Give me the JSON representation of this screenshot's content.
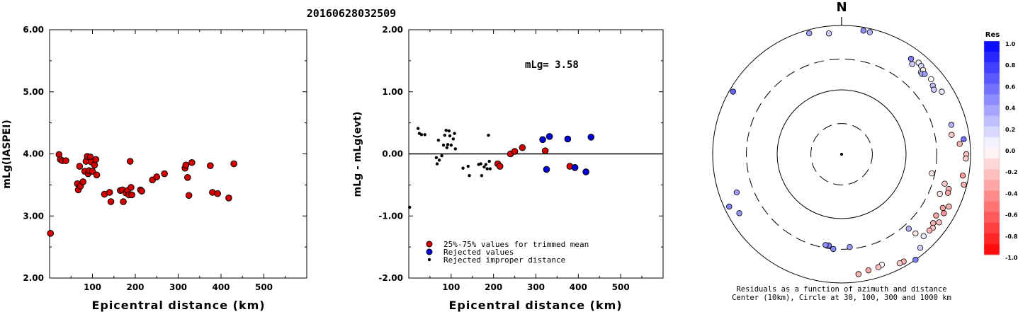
{
  "figure": {
    "event_id": "20160628032509",
    "colorbar_title": "Res",
    "colorbar_ticks": [
      "1.0",
      "0.8",
      "0.6",
      "0.4",
      "0.2",
      "0.0",
      "-0.2",
      "-0.4",
      "-0.6",
      "-0.8",
      "-1.0"
    ],
    "colors": {
      "red": "#d40000",
      "blue": "#0000d8",
      "black": "#000000"
    }
  },
  "chart_data": [
    {
      "type": "scatter",
      "xlabel": "Epicentral distance (km)",
      "ylabel": "mLg(IASPEI)",
      "xlim": [
        0,
        600
      ],
      "ylim": [
        2.0,
        6.0
      ],
      "xticks": [
        "100",
        "200",
        "300",
        "400",
        "500"
      ],
      "yticks": [
        "2.00",
        "3.00",
        "4.00",
        "5.00",
        "6.00"
      ],
      "series": [
        {
          "marker": "red-circle",
          "x": [
            2,
            22,
            25,
            30,
            38,
            65,
            67,
            70,
            72,
            78,
            82,
            85,
            88,
            90,
            92,
            95,
            97,
            100,
            105,
            108,
            110,
            128,
            140,
            143,
            165,
            170,
            172,
            178,
            182,
            185,
            188,
            190,
            192,
            212,
            215,
            240,
            250,
            268,
            316,
            318,
            322,
            325,
            332,
            375,
            380,
            392,
            418,
            430
          ],
          "y": [
            2.72,
            3.99,
            3.91,
            3.89,
            3.89,
            3.52,
            3.42,
            3.8,
            3.48,
            3.55,
            3.72,
            3.88,
            3.96,
            3.68,
            3.73,
            3.95,
            3.87,
            3.72,
            3.82,
            3.91,
            3.66,
            3.35,
            3.38,
            3.23,
            3.41,
            3.42,
            3.23,
            3.37,
            3.41,
            3.34,
            3.88,
            3.46,
            3.34,
            3.42,
            3.4,
            3.58,
            3.63,
            3.68,
            3.77,
            3.82,
            3.62,
            3.33,
            3.86,
            3.81,
            3.38,
            3.36,
            3.29,
            3.84
          ]
        }
      ]
    },
    {
      "type": "scatter",
      "xlabel": "Epicentral distance (km)",
      "ylabel": "mLg - mLg(evt)",
      "xlim": [
        0,
        600
      ],
      "ylim": [
        -2.0,
        2.0
      ],
      "xticks": [
        "100",
        "200",
        "300",
        "400",
        "500"
      ],
      "yticks": [
        "-2.00",
        "-1.00",
        "0.00",
        "1.00",
        "2.00"
      ],
      "annotation": "mLg= 3.58",
      "reference_line": 0,
      "series": [
        {
          "name": "25%-75% values for trimmed mean",
          "marker": "red-circle",
          "x": [
            210,
            215,
            240,
            250,
            268,
            322,
            380,
            392
          ],
          "y": [
            -0.16,
            -0.2,
            0.0,
            0.04,
            0.1,
            0.05,
            -0.2,
            -0.22
          ]
        },
        {
          "name": "Rejected values",
          "marker": "blue-circle",
          "x": [
            316,
            325,
            332,
            375,
            392,
            418,
            430
          ],
          "y": [
            0.23,
            -0.25,
            0.28,
            0.24,
            -0.22,
            -0.29,
            0.27
          ]
        },
        {
          "name": "Rejected improper distance",
          "marker": "black-dot",
          "x": [
            2,
            22,
            25,
            30,
            38,
            65,
            67,
            70,
            72,
            78,
            82,
            85,
            88,
            90,
            92,
            95,
            97,
            100,
            105,
            108,
            110,
            128,
            140,
            143,
            165,
            170,
            172,
            178,
            182,
            185,
            188,
            190,
            192
          ],
          "y": [
            -0.86,
            0.41,
            0.33,
            0.31,
            0.31,
            -0.06,
            -0.16,
            0.22,
            -0.1,
            -0.03,
            0.14,
            0.3,
            0.38,
            0.1,
            0.15,
            0.37,
            0.29,
            0.14,
            0.24,
            0.33,
            0.08,
            -0.23,
            -0.2,
            -0.35,
            -0.17,
            -0.16,
            -0.35,
            -0.21,
            -0.17,
            -0.24,
            0.3,
            -0.12,
            -0.24
          ]
        }
      ]
    },
    {
      "type": "scatter",
      "title": "N",
      "xlabel": "Residuals as a function of azimuth and distance",
      "subtitle": "Center (10km), Circle at 30, 100, 300 and 1000 km",
      "rings_km": [
        30,
        100,
        300,
        1000
      ],
      "series": [
        {
          "name": "stations",
          "azimuth_deg": [
            345,
            354,
            10,
            13,
            300,
            36,
            38,
            40,
            42,
            44,
            44,
            45,
            46,
            50,
            53,
            55,
            58,
            75,
            80,
            83,
            85,
            90,
            92,
            100,
            102,
            104,
            106,
            108,
            110,
            112,
            116,
            118,
            120,
            123,
            125,
            127,
            129,
            131,
            135,
            137,
            138,
            140,
            145,
            150,
            152,
            160,
            162,
            167,
            172,
            175,
            185,
            188,
            190,
            240,
            245,
            250
          ],
          "distance_km": [
            880,
            770,
            890,
            880,
            880,
            680,
            600,
            720,
            700,
            590,
            660,
            580,
            620,
            650,
            590,
            560,
            680,
            580,
            540,
            810,
            690,
            860,
            850,
            810,
            270,
            900,
            460,
            560,
            570,
            440,
            710,
            600,
            680,
            560,
            700,
            600,
            660,
            640,
            630,
            480,
            360,
            790,
            1000,
            840,
            830,
            670,
            700,
            710,
            760,
            280,
            300,
            270,
            270,
            680,
            840,
            540
          ],
          "residual": [
            0.35,
            0.2,
            0.45,
            0.3,
            0.6,
            0.5,
            0.2,
            0.05,
            0.15,
            0.1,
            -0.05,
            0.3,
            0.4,
            0.0,
            0.25,
            0.2,
            0.1,
            0.3,
            -0.2,
            0.55,
            -0.3,
            -0.25,
            -0.2,
            -0.4,
            -0.1,
            -0.3,
            -0.2,
            -0.3,
            -0.35,
            -0.1,
            -0.3,
            -0.35,
            -0.4,
            -0.35,
            -0.25,
            -0.3,
            -0.25,
            -0.3,
            0.1,
            -0.1,
            0.3,
            0.2,
            0.5,
            -0.3,
            -0.2,
            0.0,
            -0.25,
            -0.35,
            -0.3,
            0.4,
            0.45,
            0.5,
            0.45,
            0.4,
            0.5,
            0.4
          ]
        }
      ]
    }
  ]
}
